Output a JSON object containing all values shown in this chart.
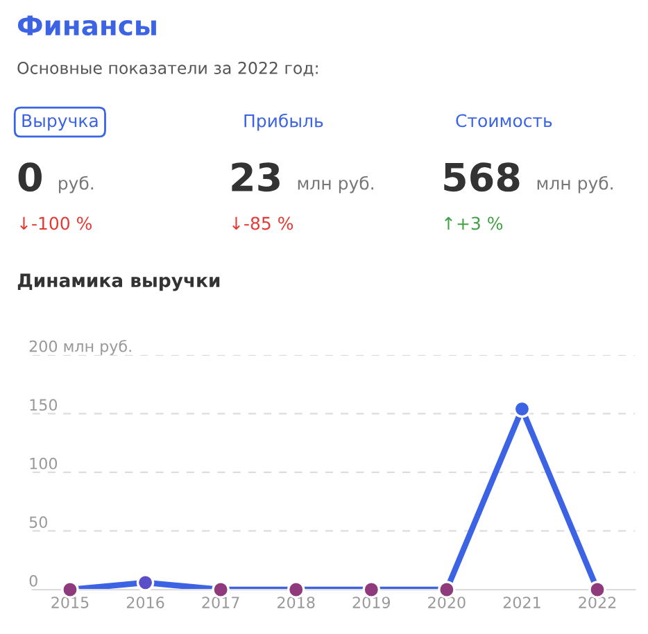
{
  "chart_data": [
    {
      "type": "other",
      "title": "Финансы",
      "subtitle": "Основные показатели за 2022 год:",
      "annotations": [
        "Выручка",
        "0",
        "руб.",
        "↓-100 %",
        "Прибыль",
        "23",
        "млн руб.",
        "↓-85 %",
        "Стоимость",
        "568",
        "млн руб.",
        "↑+3 %"
      ]
    },
    {
      "type": "line",
      "title": "Динамика выручки",
      "categories": [
        "2015",
        "2016",
        "2017",
        "2018",
        "2019",
        "2020",
        "2021",
        "2022"
      ],
      "series": [
        {
          "color": "#3b63e3",
          "colors": [
            "#8e3a7c",
            "#5b4fc9",
            "#8e3a7c",
            "#8e3a7c",
            "#8e3a7c",
            "#8e3a7c",
            "#3b63e3",
            "#8e3a7c"
          ],
          "values": [
            0,
            6,
            0,
            0,
            0,
            0,
            154,
            0
          ]
        }
      ],
      "ylim": [
        0,
        200
      ],
      "yticks": [
        0,
        50,
        100,
        150,
        {
          "value": 200,
          "label": "200 млн руб."
        }
      ],
      "grid": "y",
      "marker": "circle",
      "line_style": "solid"
    }
  ]
}
